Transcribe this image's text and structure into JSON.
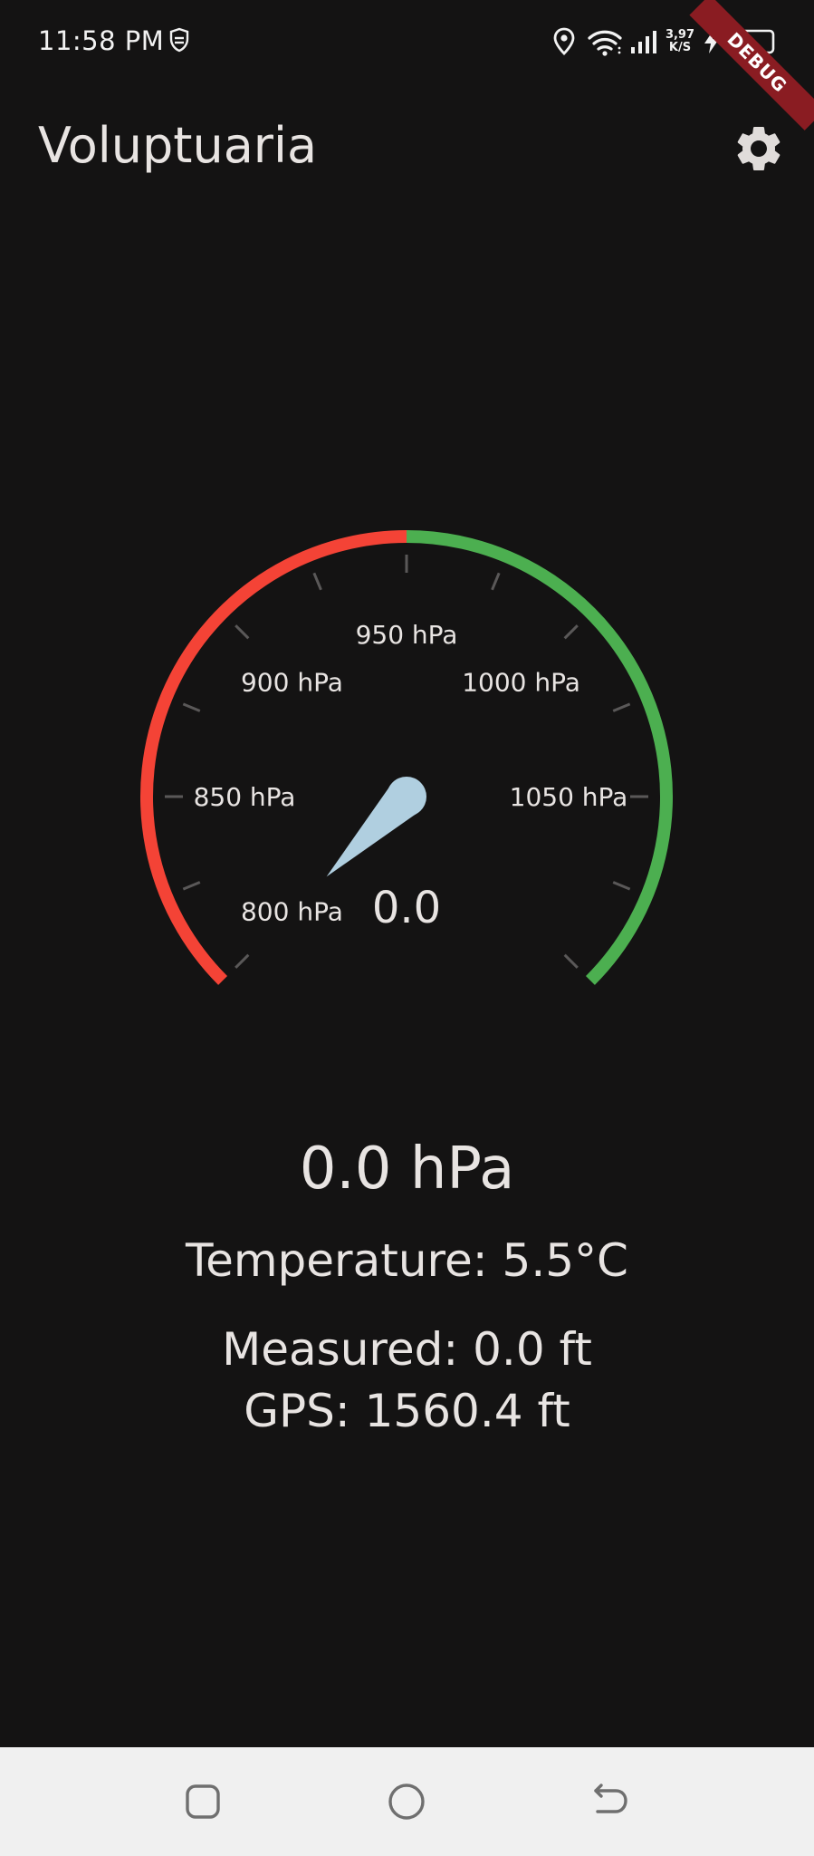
{
  "status_bar": {
    "time": "11:58 PM",
    "network_speed_value": "3,97",
    "network_speed_unit": "K/S",
    "battery_level": "24",
    "icons": [
      "shield-icon",
      "location-icon",
      "wifi-icon",
      "signal-icon",
      "charging-icon",
      "battery-icon"
    ],
    "debug_banner": "DEBUG"
  },
  "app_bar": {
    "title": "Voluptuaria",
    "settings_icon": "gear-icon"
  },
  "gauge": {
    "min": 800,
    "max": 1100,
    "unit": "hPa",
    "value_text": "0.0",
    "value": 0.0,
    "tick_labels": [
      "800 hPa",
      "850 hPa",
      "900 hPa",
      "950 hPa",
      "1000 hPa",
      "1050 hPa"
    ],
    "low_range_color": "#f44336",
    "high_range_color": "#4caf50",
    "needle_color": "#b0cfe0",
    "colors": {
      "low_range": "#f44336",
      "high_range": "#4caf50",
      "needle": "#b0cfe0"
    }
  },
  "readouts": {
    "pressure": "0.0 hPa",
    "temperature": "Temperature: 5.5°C",
    "measured": "Measured: 0.0 ft",
    "gps": "GPS: 1560.4 ft"
  },
  "nav_bar": {
    "icons": [
      "recents-icon",
      "home-icon",
      "back-icon"
    ]
  }
}
